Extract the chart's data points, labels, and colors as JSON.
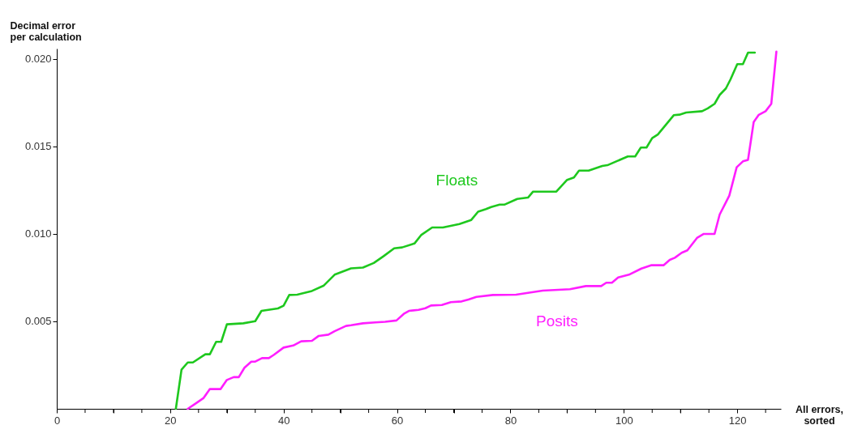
{
  "chart_data": {
    "type": "line",
    "xlabel": "All errors,\nsorted",
    "ylabel": "Decimal error\nper calculation",
    "xlim": [
      0,
      127.7
    ],
    "ylim": [
      0,
      0.0206
    ],
    "xticks": [
      0,
      {
        "value": 5,
        "label": null
      },
      {
        "value": 10,
        "label": null
      },
      {
        "value": 15,
        "label": null
      },
      20,
      {
        "value": 25,
        "label": null
      },
      {
        "value": 30,
        "label": null
      },
      {
        "value": 35,
        "label": null
      },
      40,
      {
        "value": 45,
        "label": null
      },
      {
        "value": 50,
        "label": null
      },
      {
        "value": 55,
        "label": null
      },
      60,
      {
        "value": 65,
        "label": null
      },
      {
        "value": 70,
        "label": null
      },
      {
        "value": 75,
        "label": null
      },
      80,
      {
        "value": 85,
        "label": null
      },
      {
        "value": 90,
        "label": null
      },
      {
        "value": 95,
        "label": null
      },
      100,
      {
        "value": 105,
        "label": null
      },
      {
        "value": 110,
        "label": null
      },
      {
        "value": 115,
        "label": null
      },
      120,
      {
        "value": 125,
        "label": null
      }
    ],
    "yticks": [
      0.005,
      {
        "value": 0.01,
        "label": "0.010"
      },
      0.015,
      {
        "value": 0.02,
        "label": "0.020"
      }
    ],
    "grid": false,
    "legend": false,
    "marker": "none",
    "line_style": "solid",
    "series": [
      {
        "name": "Floats",
        "color": "#1ec81e",
        "x": [
          21.0,
          22.0,
          23.1,
          24.0,
          26.2,
          27.0,
          28.1,
          29.0,
          30.0,
          32.9,
          35.0,
          36.1,
          39.0,
          40.0,
          41.0,
          42.4,
          45.0,
          47.1,
          49.0,
          51.9,
          54.0,
          55.9,
          57.6,
          59.5,
          60.9,
          63.1,
          64.3,
          66.2,
          68.1,
          71.0,
          73.1,
          74.3,
          75.7,
          76.6,
          78.1,
          79.0,
          81.2,
          83.1,
          84.0,
          88.1,
          90.0,
          91.2,
          92.1,
          93.8,
          96.2,
          97.1,
          100.7,
          102.0,
          103.0,
          104.0,
          105.0,
          106.0,
          108.8,
          109.8,
          111.0,
          113.8,
          114.8,
          116.0,
          116.9,
          118.0,
          118.8,
          120.0,
          121.0,
          121.9,
          123.1
        ],
        "values": [
          0,
          0.00224,
          0.00265,
          0.00265,
          0.00312,
          0.00312,
          0.00383,
          0.00383,
          0.00483,
          0.00489,
          0.00501,
          0.0056,
          0.00574,
          0.0059,
          0.00651,
          0.00653,
          0.00674,
          0.00705,
          0.00767,
          0.00803,
          0.00808,
          0.00834,
          0.00872,
          0.00918,
          0.00923,
          0.00946,
          0.00995,
          0.01037,
          0.01037,
          0.01057,
          0.0108,
          0.01127,
          0.01142,
          0.01154,
          0.01168,
          0.01168,
          0.012,
          0.01208,
          0.01242,
          0.01242,
          0.01309,
          0.01323,
          0.01362,
          0.01362,
          0.01389,
          0.01393,
          0.01443,
          0.01443,
          0.01494,
          0.01494,
          0.01548,
          0.01569,
          0.01679,
          0.01682,
          0.01694,
          0.01702,
          0.01718,
          0.01744,
          0.01795,
          0.01832,
          0.01883,
          0.01971,
          0.01971,
          0.02037,
          0.02037
        ]
      },
      {
        "name": "Posits",
        "color": "#ff1eff",
        "x": [
          23.1,
          24.3,
          25.9,
          27.0,
          28.9,
          30.0,
          31.2,
          32.1,
          33.1,
          34.3,
          35.0,
          36.2,
          37.4,
          38.3,
          40.0,
          41.7,
          43.1,
          45.0,
          46.2,
          47.9,
          49.0,
          51.0,
          51.9,
          54.0,
          56.2,
          57.9,
          59.9,
          61.2,
          62.1,
          63.8,
          65.0,
          66.0,
          67.9,
          69.5,
          71.4,
          72.6,
          74.0,
          76.9,
          81.0,
          83.1,
          85.7,
          90.5,
          93.3,
          96.0,
          96.9,
          97.9,
          99.0,
          100.9,
          103.1,
          104.8,
          107.0,
          108.1,
          109.0,
          110.2,
          111.2,
          112.9,
          114.1,
          116.0,
          116.9,
          118.6,
          119.9,
          121.0,
          121.9,
          122.9,
          123.8,
          125.0,
          126.0,
          126.9
        ],
        "values": [
          0,
          0.00026,
          0.00062,
          0.00113,
          0.00113,
          0.00165,
          0.00181,
          0.00181,
          0.00235,
          0.0027,
          0.0027,
          0.0029,
          0.0029,
          0.00309,
          0.0035,
          0.00362,
          0.00386,
          0.00389,
          0.00417,
          0.00424,
          0.00444,
          0.00474,
          0.00478,
          0.00489,
          0.00494,
          0.00498,
          0.00505,
          0.00543,
          0.0056,
          0.00566,
          0.00575,
          0.00591,
          0.00594,
          0.0061,
          0.00614,
          0.00625,
          0.0064,
          0.00651,
          0.00653,
          0.00663,
          0.00676,
          0.00684,
          0.00702,
          0.00702,
          0.00721,
          0.00721,
          0.00751,
          0.00767,
          0.00802,
          0.00821,
          0.00821,
          0.00852,
          0.00864,
          0.00892,
          0.00906,
          0.00977,
          0.01,
          0.01,
          0.01111,
          0.01219,
          0.01381,
          0.01415,
          0.01424,
          0.0164,
          0.01681,
          0.01702,
          0.01744,
          0.02042
        ]
      }
    ]
  }
}
